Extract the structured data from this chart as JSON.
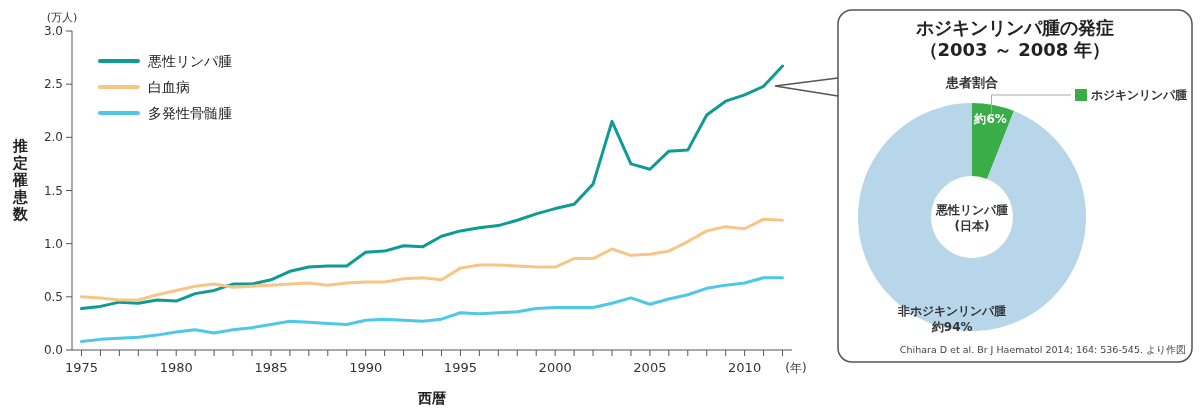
{
  "chart_data": [
    {
      "type": "line",
      "xlabel": "西暦",
      "ylabel": "推定罹患数",
      "annotations": [
        "(万人)",
        "(年)"
      ],
      "x": [
        1975,
        1976,
        1977,
        1978,
        1979,
        1980,
        1981,
        1982,
        1983,
        1984,
        1985,
        1986,
        1987,
        1988,
        1989,
        1990,
        1991,
        1992,
        1993,
        1994,
        1995,
        1996,
        1997,
        1998,
        1999,
        2000,
        2001,
        2002,
        2003,
        2004,
        2005,
        2006,
        2007,
        2008,
        2009,
        2010,
        2011,
        2012
      ],
      "series": [
        {
          "name": "悪性リンパ腫",
          "color": "#0e9b96",
          "values": [
            0.39,
            0.41,
            0.45,
            0.44,
            0.47,
            0.46,
            0.53,
            0.56,
            0.62,
            0.62,
            0.66,
            0.74,
            0.78,
            0.79,
            0.79,
            0.92,
            0.93,
            0.98,
            0.97,
            1.07,
            1.12,
            1.15,
            1.17,
            1.22,
            1.28,
            1.33,
            1.37,
            1.56,
            2.15,
            1.75,
            1.7,
            1.87,
            1.88,
            2.21,
            2.34,
            2.4,
            2.48,
            2.67
          ]
        },
        {
          "name": "白血病",
          "color": "#f8c585",
          "values": [
            0.5,
            0.49,
            0.47,
            0.47,
            0.52,
            0.56,
            0.6,
            0.62,
            0.59,
            0.6,
            0.61,
            0.62,
            0.63,
            0.61,
            0.63,
            0.64,
            0.64,
            0.67,
            0.68,
            0.66,
            0.77,
            0.8,
            0.8,
            0.79,
            0.78,
            0.78,
            0.86,
            0.86,
            0.95,
            0.89,
            0.9,
            0.93,
            1.02,
            1.12,
            1.16,
            1.14,
            1.23,
            1.22
          ]
        },
        {
          "name": "多発性骨髄腫",
          "color": "#4dc8e6",
          "values": [
            0.08,
            0.1,
            0.11,
            0.12,
            0.14,
            0.17,
            0.19,
            0.16,
            0.19,
            0.21,
            0.24,
            0.27,
            0.26,
            0.25,
            0.24,
            0.28,
            0.29,
            0.28,
            0.27,
            0.29,
            0.35,
            0.34,
            0.35,
            0.36,
            0.39,
            0.4,
            0.4,
            0.4,
            0.44,
            0.49,
            0.43,
            0.48,
            0.52,
            0.58,
            0.61,
            0.63,
            0.68,
            0.68
          ]
        }
      ],
      "xlim": [
        1974.5,
        2012.5
      ],
      "xticks": [
        1975,
        {
          "value": 1976,
          "label": null
        },
        {
          "value": 1977,
          "label": null
        },
        {
          "value": 1978,
          "label": null
        },
        {
          "value": 1979,
          "label": null
        },
        1980,
        {
          "value": 1981,
          "label": null
        },
        {
          "value": 1982,
          "label": null
        },
        {
          "value": 1983,
          "label": null
        },
        {
          "value": 1984,
          "label": null
        },
        1985,
        {
          "value": 1986,
          "label": null
        },
        {
          "value": 1987,
          "label": null
        },
        {
          "value": 1988,
          "label": null
        },
        {
          "value": 1989,
          "label": null
        },
        1990,
        {
          "value": 1991,
          "label": null
        },
        {
          "value": 1992,
          "label": null
        },
        {
          "value": 1993,
          "label": null
        },
        {
          "value": 1994,
          "label": null
        },
        1995,
        {
          "value": 1996,
          "label": null
        },
        {
          "value": 1997,
          "label": null
        },
        {
          "value": 1998,
          "label": null
        },
        {
          "value": 1999,
          "label": null
        },
        2000,
        {
          "value": 2001,
          "label": null
        },
        {
          "value": 2002,
          "label": null
        },
        {
          "value": 2003,
          "label": null
        },
        {
          "value": 2004,
          "label": null
        },
        2005,
        {
          "value": 2006,
          "label": null
        },
        {
          "value": 2007,
          "label": null
        },
        {
          "value": 2008,
          "label": null
        },
        {
          "value": 2009,
          "label": null
        },
        2010,
        {
          "value": 2011,
          "label": null
        },
        {
          "value": 2012,
          "label": null
        }
      ],
      "ylim": [
        0,
        3
      ],
      "yticks": [
        {
          "value": 0,
          "label": "0.0"
        },
        {
          "value": 0.5,
          "label": "0.5"
        },
        {
          "value": 1,
          "label": "1.0"
        },
        {
          "value": 1.5,
          "label": "1.5"
        },
        {
          "value": 2,
          "label": "2.0"
        },
        {
          "value": 2.5,
          "label": "2.5"
        },
        {
          "value": 3,
          "label": "3.0"
        }
      ],
      "grid": false,
      "legend": "top left",
      "marker": "none",
      "line_style": "solid"
    },
    {
      "type": "donut",
      "title": "ホジキンリンパ腫の発症（2003 ～ 2008 年）",
      "subtitle": "患者割合",
      "categories": [
        "ホジキンリンパ腫",
        "非ホジキンリンパ腫"
      ],
      "values": [
        6,
        94
      ],
      "colors": [
        "#3aac48",
        "#b8d6ea"
      ],
      "value_labels": [
        "約6%",
        "約94%"
      ],
      "legend": "top right",
      "annotations": [
        "悪性リンパ腫\n(日本)",
        "Chihara D et al. Br J Haematol 2014; 164: 536-545. より作図"
      ]
    }
  ]
}
